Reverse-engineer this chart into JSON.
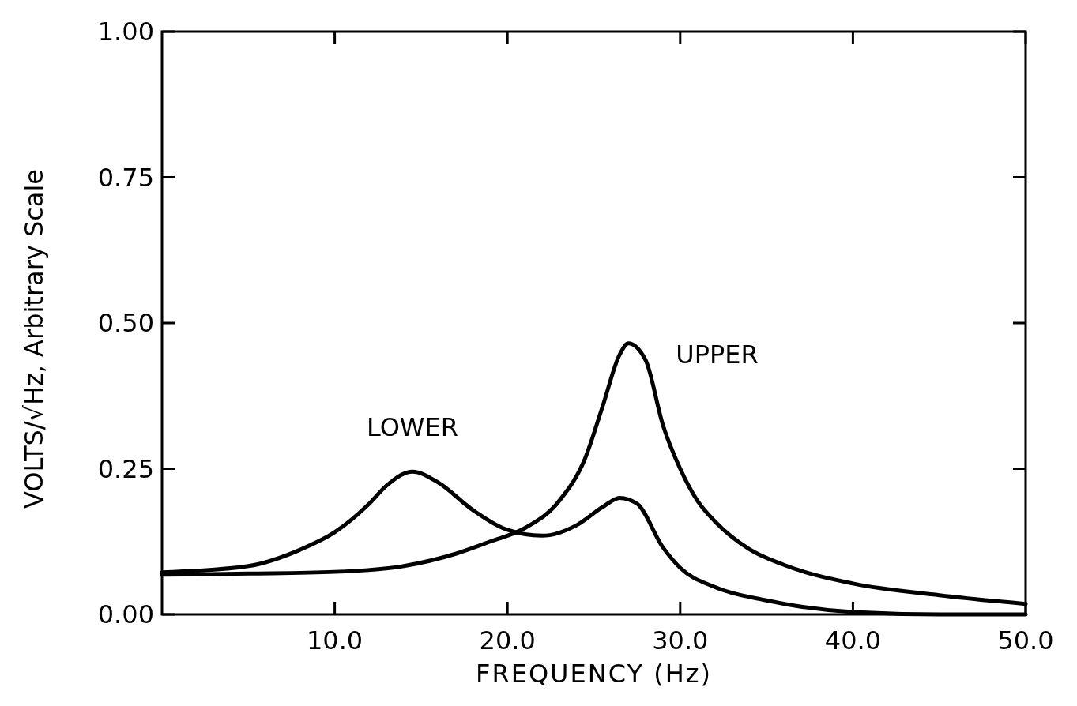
{
  "chart_data": {
    "type": "line",
    "xlabel": "FREQUENCY (Hz)",
    "ylabel": "VOLTS/√Hz, Arbitrary Scale",
    "xlim": [
      0,
      50
    ],
    "ylim": [
      0,
      1
    ],
    "xticks": [
      {
        "value": 10,
        "label": "10.0"
      },
      {
        "value": 20,
        "label": "20.0"
      },
      {
        "value": 30,
        "label": "30.0"
      },
      {
        "value": 40,
        "label": "40.0"
      },
      {
        "value": 50,
        "label": "50.0"
      }
    ],
    "yticks": [
      {
        "value": 0,
        "label": "0.00"
      },
      {
        "value": 0.25,
        "label": "0.25"
      },
      {
        "value": 0.5,
        "label": "0.50"
      },
      {
        "value": 0.75,
        "label": "0.75"
      },
      {
        "value": 1,
        "label": "1.00"
      }
    ],
    "grid": false,
    "marker": "none",
    "line_style": "solid",
    "series": [
      {
        "name": "LOWER",
        "color": "#000000",
        "x": [
          0,
          5,
          8,
          10,
          12,
          13,
          14.5,
          16,
          18,
          20,
          22,
          24,
          25.5,
          26.5,
          27.5,
          29,
          30,
          32,
          35,
          40,
          45,
          50
        ],
        "values": [
          0.072,
          0.083,
          0.111,
          0.141,
          0.19,
          0.221,
          0.245,
          0.226,
          0.179,
          0.145,
          0.135,
          0.153,
          0.184,
          0.2,
          0.19,
          0.115,
          0.08,
          0.047,
          0.024,
          0.004,
          0,
          0
        ]
      },
      {
        "name": "UPPER",
        "color": "#000000",
        "x": [
          0,
          5,
          10,
          14,
          17,
          19,
          21,
          23,
          24.5,
          25.5,
          26.5,
          27,
          28,
          29,
          30,
          31,
          32,
          34,
          36,
          40,
          45,
          50
        ],
        "values": [
          0.068,
          0.07,
          0.073,
          0.083,
          0.104,
          0.125,
          0.148,
          0.195,
          0.268,
          0.356,
          0.446,
          0.465,
          0.436,
          0.325,
          0.25,
          0.195,
          0.16,
          0.112,
          0.085,
          0.053,
          0.033,
          0.018
        ]
      }
    ]
  }
}
